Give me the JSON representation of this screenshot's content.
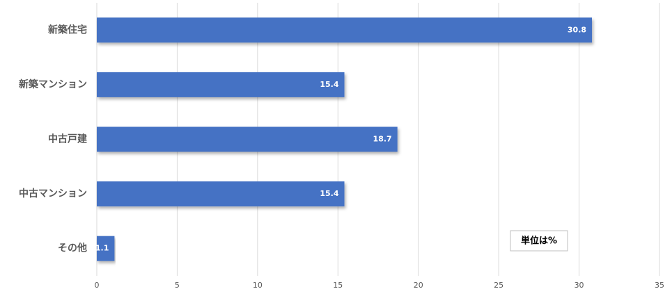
{
  "chart_data": {
    "type": "barh",
    "annotation": "単位は%",
    "categories": [
      "新築住宅",
      "新築マンション",
      "中古戸建",
      "中古マンション",
      "その他"
    ],
    "values": [
      30.8,
      15.4,
      18.7,
      15.4,
      1.1
    ],
    "color": "#4472c4",
    "xlim": [
      0,
      35
    ],
    "xticks": [
      0,
      5,
      10,
      15,
      20,
      25,
      30,
      35
    ],
    "grid": true
  }
}
